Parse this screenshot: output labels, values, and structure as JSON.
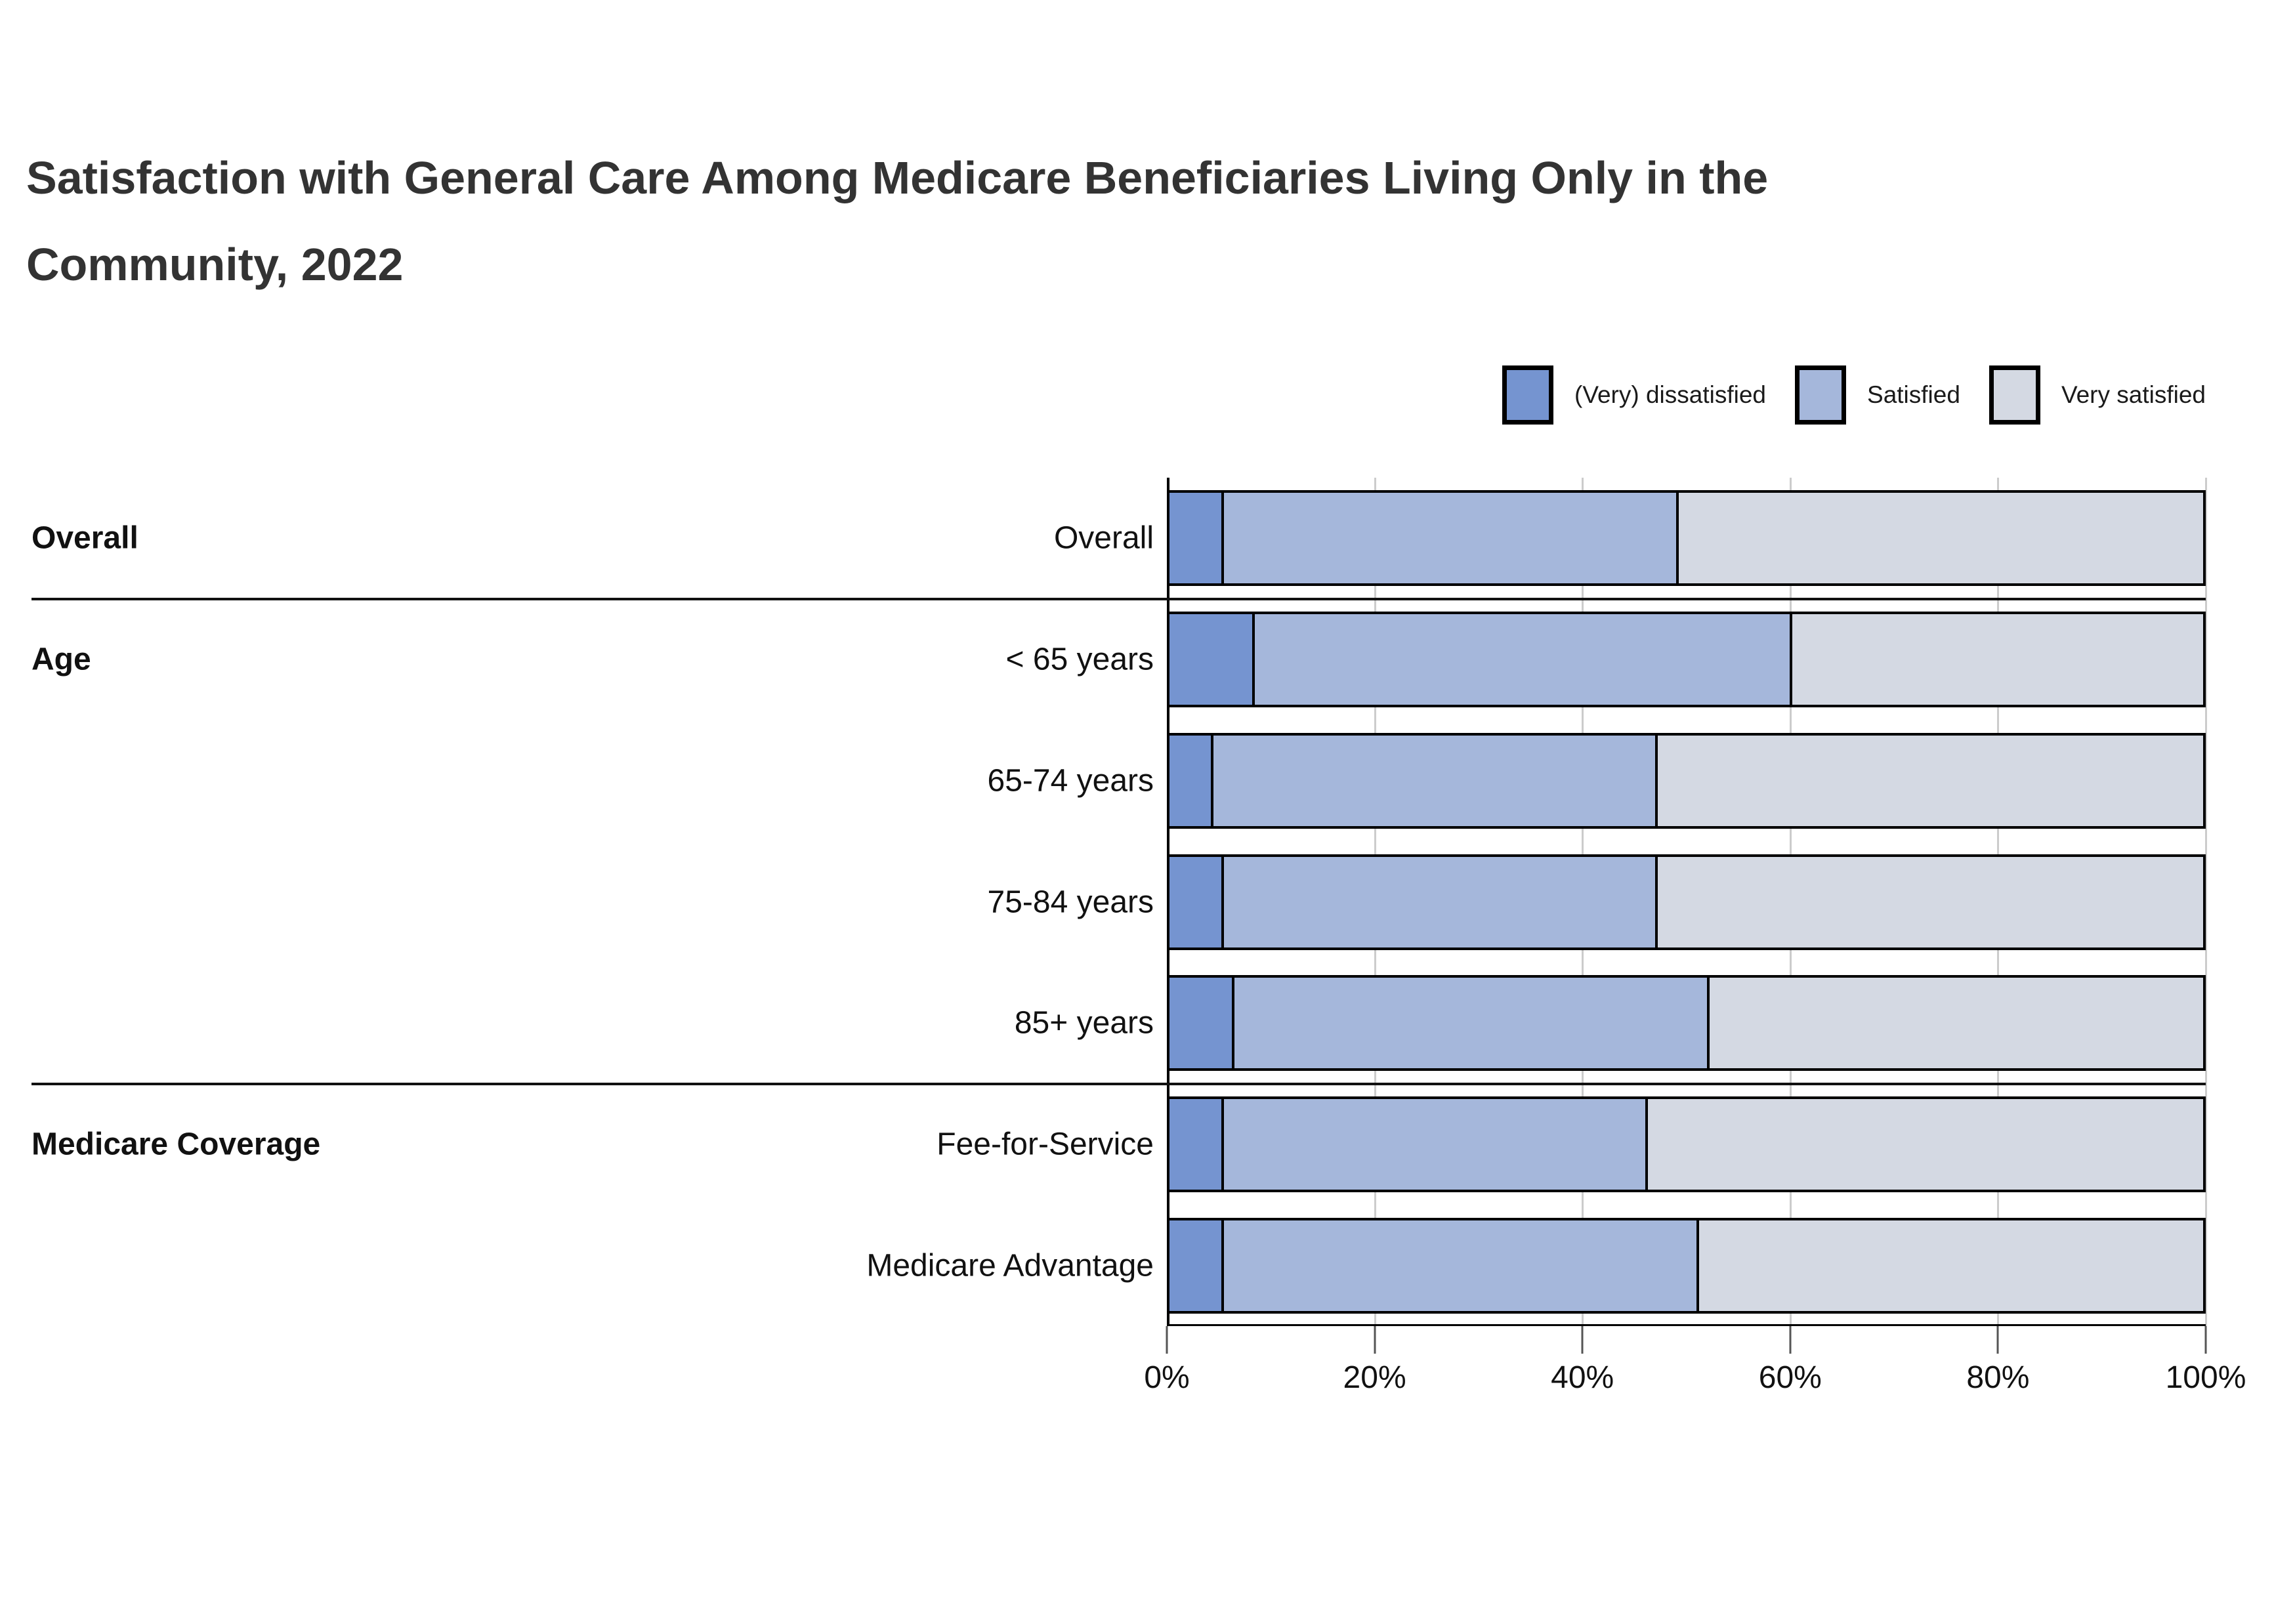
{
  "title_lines": [
    "Satisfaction with General Care Among Medicare Beneficiaries Living Only in the",
    "Community, 2022"
  ],
  "groups": [
    {
      "label": "Overall",
      "start_row": 0,
      "end_row": 0
    },
    {
      "label": "Age",
      "start_row": 1,
      "end_row": 4
    },
    {
      "label": "Medicare Coverage",
      "start_row": 5,
      "end_row": 6
    }
  ],
  "chart_data": {
    "type": "bar",
    "orientation": "horizontal",
    "stacked": true,
    "title": "Satisfaction with General Care Among Medicare Beneficiaries Living Only in the Community, 2022",
    "categories": [
      "Overall",
      "< 65 years",
      "65-74 years",
      "75-84 years",
      "85+ years",
      "Fee-for-Service",
      "Medicare Advantage"
    ],
    "series": [
      {
        "name": "(Very) dissatisfied",
        "color": "#7594D0",
        "values": [
          5,
          8,
          4,
          5,
          6,
          5,
          5
        ]
      },
      {
        "name": "Satisfied",
        "color": "#A5B7DB",
        "values": [
          44,
          52,
          43,
          42,
          46,
          41,
          46
        ]
      },
      {
        "name": "Very satisfied",
        "color": "#D4D9E3",
        "values": [
          51,
          40,
          53,
          53,
          48,
          54,
          49
        ]
      }
    ],
    "x_axis": {
      "tick_labels": [
        "0%",
        "20%",
        "40%",
        "60%",
        "80%",
        "100%"
      ],
      "range_percent": [
        0,
        100
      ]
    },
    "grid": true,
    "legend_position": "top-right",
    "bar_border_color": "#000000",
    "gridline_color": "#cccccc"
  }
}
